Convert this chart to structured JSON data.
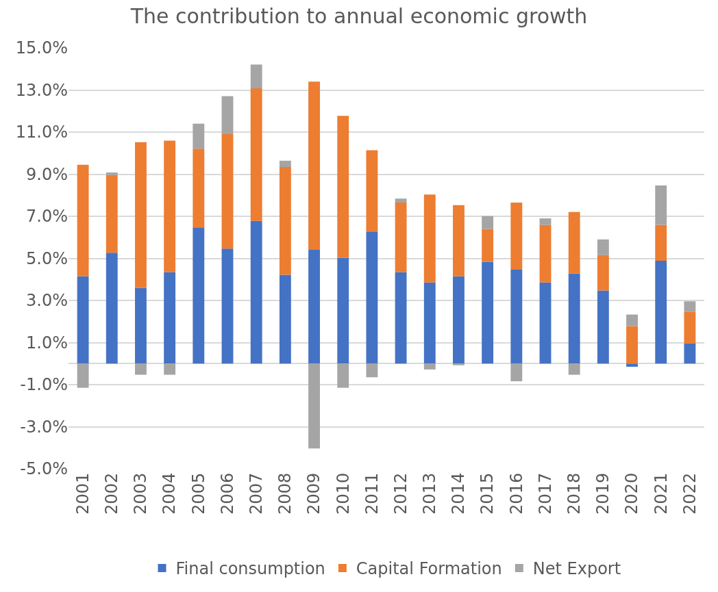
{
  "chart_data": {
    "type": "bar",
    "title": "The contribution to annual economic growth",
    "categories": [
      "2001",
      "2002",
      "2003",
      "2004",
      "2005",
      "2006",
      "2007",
      "2008",
      "2009",
      "2010",
      "2011",
      "2012",
      "2013",
      "2014",
      "2015",
      "2016",
      "2017",
      "2018",
      "2019",
      "2020",
      "2021",
      "2022"
    ],
    "stacked": true,
    "series": [
      {
        "name": "Final consumption",
        "color": "#4472c4",
        "values": [
          4.15,
          5.27,
          3.59,
          4.34,
          6.47,
          5.46,
          6.78,
          4.22,
          5.41,
          5.03,
          6.28,
          4.34,
          3.85,
          4.15,
          4.84,
          4.46,
          3.85,
          4.28,
          3.47,
          -0.15,
          4.89,
          0.96
        ]
      },
      {
        "name": "Capital Formation",
        "color": "#ed7d31",
        "values": [
          5.3,
          3.69,
          6.93,
          6.25,
          3.74,
          5.44,
          6.3,
          5.12,
          7.99,
          6.74,
          3.86,
          3.31,
          4.18,
          3.38,
          1.56,
          3.19,
          2.74,
          2.92,
          1.68,
          1.78,
          1.7,
          1.51
        ]
      },
      {
        "name": "Net Export",
        "color": "#a5a5a5",
        "values": [
          -1.15,
          0.12,
          -0.53,
          -0.53,
          1.19,
          1.81,
          1.13,
          0.3,
          -4.03,
          -1.15,
          -0.65,
          0.19,
          -0.28,
          -0.08,
          0.61,
          -0.84,
          0.31,
          -0.53,
          0.75,
          0.55,
          1.87,
          0.49
        ]
      }
    ],
    "ylim": [
      -5,
      15
    ],
    "yticks": [
      {
        "value": -5,
        "label": "-5.0%"
      },
      {
        "value": -3,
        "label": "-3.0%"
      },
      {
        "value": -1,
        "label": "-1.0%"
      },
      {
        "value": 1,
        "label": "1.0%"
      },
      {
        "value": 3,
        "label": "3.0%"
      },
      {
        "value": 5,
        "label": "5.0%"
      },
      {
        "value": 7,
        "label": "7.0%"
      },
      {
        "value": 9,
        "label": "9.0%"
      },
      {
        "value": 11,
        "label": "11.0%"
      },
      {
        "value": 13,
        "label": "13.0%"
      },
      {
        "value": 15,
        "label": "15.0%"
      }
    ],
    "grid": "y",
    "legend": "bottom"
  }
}
